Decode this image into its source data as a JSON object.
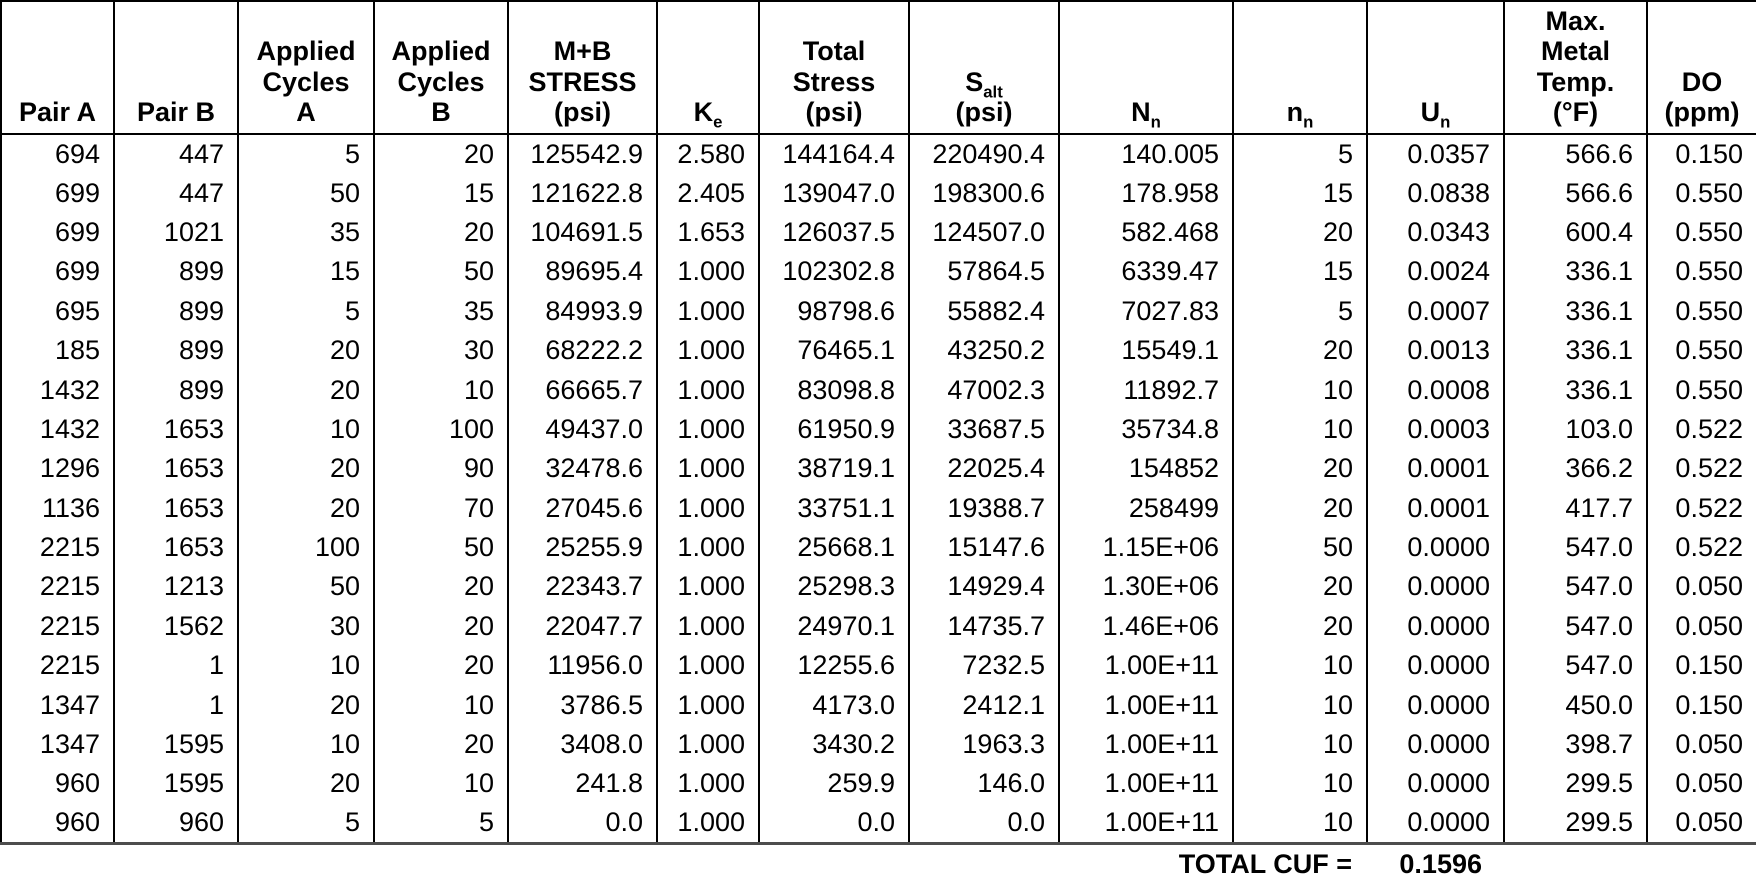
{
  "colors": {
    "background": "#ffffff",
    "text": "#000000",
    "grid_line": "#000000",
    "bottom_rule": "#4d4d4d"
  },
  "table": {
    "columns": [
      {
        "id": "pair-a",
        "lines": [
          [
            {
              "text": "Pair A"
            }
          ]
        ]
      },
      {
        "id": "pair-b",
        "lines": [
          [
            {
              "text": "Pair B"
            }
          ]
        ]
      },
      {
        "id": "applied-cycles-a",
        "lines": [
          [
            {
              "text": "Applied"
            }
          ],
          [
            {
              "text": "Cycles"
            }
          ],
          [
            {
              "text": "A"
            }
          ]
        ]
      },
      {
        "id": "applied-cycles-b",
        "lines": [
          [
            {
              "text": "Applied"
            }
          ],
          [
            {
              "text": "Cycles"
            }
          ],
          [
            {
              "text": "B"
            }
          ]
        ]
      },
      {
        "id": "mb-stress",
        "lines": [
          [
            {
              "text": "M+B"
            }
          ],
          [
            {
              "text": "STRESS"
            }
          ],
          [
            {
              "text": "(psi)"
            }
          ]
        ]
      },
      {
        "id": "ke",
        "lines": [
          [
            {
              "text": "K"
            },
            {
              "text": "e",
              "sub": true
            }
          ]
        ]
      },
      {
        "id": "total-stress",
        "lines": [
          [
            {
              "text": "Total"
            }
          ],
          [
            {
              "text": "Stress"
            }
          ],
          [
            {
              "text": "(psi)"
            }
          ]
        ]
      },
      {
        "id": "s-alt",
        "lines": [
          [
            {
              "text": "S"
            },
            {
              "text": "alt",
              "sub": true
            }
          ],
          [
            {
              "text": "(psi)"
            }
          ]
        ]
      },
      {
        "id": "n-allowable",
        "lines": [
          [
            {
              "text": "N"
            },
            {
              "text": "n",
              "sub": true
            }
          ]
        ]
      },
      {
        "id": "n-applied",
        "lines": [
          [
            {
              "text": "n"
            },
            {
              "text": "n",
              "sub": true
            }
          ]
        ]
      },
      {
        "id": "u-n",
        "lines": [
          [
            {
              "text": "U"
            },
            {
              "text": "n",
              "sub": true
            }
          ]
        ]
      },
      {
        "id": "max-metal-temp",
        "lines": [
          [
            {
              "text": "Max."
            }
          ],
          [
            {
              "text": "Metal"
            }
          ],
          [
            {
              "text": "Temp."
            }
          ],
          [
            {
              "text": "(°F)"
            }
          ]
        ]
      },
      {
        "id": "do-ppm",
        "lines": [
          [
            {
              "text": "DO"
            }
          ],
          [
            {
              "text": "(ppm)"
            }
          ]
        ]
      }
    ],
    "rows": [
      [
        "694",
        "447",
        "5",
        "20",
        "125542.9",
        "2.580",
        "144164.4",
        "220490.4",
        "140.005",
        "5",
        "0.0357",
        "566.6",
        "0.150"
      ],
      [
        "699",
        "447",
        "50",
        "15",
        "121622.8",
        "2.405",
        "139047.0",
        "198300.6",
        "178.958",
        "15",
        "0.0838",
        "566.6",
        "0.550"
      ],
      [
        "699",
        "1021",
        "35",
        "20",
        "104691.5",
        "1.653",
        "126037.5",
        "124507.0",
        "582.468",
        "20",
        "0.0343",
        "600.4",
        "0.550"
      ],
      [
        "699",
        "899",
        "15",
        "50",
        "89695.4",
        "1.000",
        "102302.8",
        "57864.5",
        "6339.47",
        "15",
        "0.0024",
        "336.1",
        "0.550"
      ],
      [
        "695",
        "899",
        "5",
        "35",
        "84993.9",
        "1.000",
        "98798.6",
        "55882.4",
        "7027.83",
        "5",
        "0.0007",
        "336.1",
        "0.550"
      ],
      [
        "185",
        "899",
        "20",
        "30",
        "68222.2",
        "1.000",
        "76465.1",
        "43250.2",
        "15549.1",
        "20",
        "0.0013",
        "336.1",
        "0.550"
      ],
      [
        "1432",
        "899",
        "20",
        "10",
        "66665.7",
        "1.000",
        "83098.8",
        "47002.3",
        "11892.7",
        "10",
        "0.0008",
        "336.1",
        "0.550"
      ],
      [
        "1432",
        "1653",
        "10",
        "100",
        "49437.0",
        "1.000",
        "61950.9",
        "33687.5",
        "35734.8",
        "10",
        "0.0003",
        "103.0",
        "0.522"
      ],
      [
        "1296",
        "1653",
        "20",
        "90",
        "32478.6",
        "1.000",
        "38719.1",
        "22025.4",
        "154852",
        "20",
        "0.0001",
        "366.2",
        "0.522"
      ],
      [
        "1136",
        "1653",
        "20",
        "70",
        "27045.6",
        "1.000",
        "33751.1",
        "19388.7",
        "258499",
        "20",
        "0.0001",
        "417.7",
        "0.522"
      ],
      [
        "2215",
        "1653",
        "100",
        "50",
        "25255.9",
        "1.000",
        "25668.1",
        "15147.6",
        "1.15E+06",
        "50",
        "0.0000",
        "547.0",
        "0.522"
      ],
      [
        "2215",
        "1213",
        "50",
        "20",
        "22343.7",
        "1.000",
        "25298.3",
        "14929.4",
        "1.30E+06",
        "20",
        "0.0000",
        "547.0",
        "0.050"
      ],
      [
        "2215",
        "1562",
        "30",
        "20",
        "22047.7",
        "1.000",
        "24970.1",
        "14735.7",
        "1.46E+06",
        "20",
        "0.0000",
        "547.0",
        "0.050"
      ],
      [
        "2215",
        "1",
        "10",
        "20",
        "11956.0",
        "1.000",
        "12255.6",
        "7232.5",
        "1.00E+11",
        "10",
        "0.0000",
        "547.0",
        "0.150"
      ],
      [
        "1347",
        "1",
        "20",
        "10",
        "3786.5",
        "1.000",
        "4173.0",
        "2412.1",
        "1.00E+11",
        "10",
        "0.0000",
        "450.0",
        "0.150"
      ],
      [
        "1347",
        "1595",
        "10",
        "20",
        "3408.0",
        "1.000",
        "3430.2",
        "1963.3",
        "1.00E+11",
        "10",
        "0.0000",
        "398.7",
        "0.050"
      ],
      [
        "960",
        "1595",
        "20",
        "10",
        "241.8",
        "1.000",
        "259.9",
        "146.0",
        "1.00E+11",
        "10",
        "0.0000",
        "299.5",
        "0.050"
      ],
      [
        "960",
        "960",
        "5",
        "5",
        "0.0",
        "1.000",
        "0.0",
        "0.0",
        "1.00E+11",
        "10",
        "0.0000",
        "299.5",
        "0.050"
      ]
    ],
    "footer": {
      "label": "TOTAL CUF =",
      "value": "0.1596"
    }
  }
}
